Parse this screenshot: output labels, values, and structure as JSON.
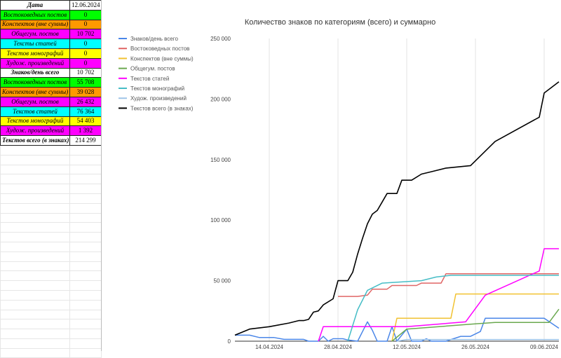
{
  "sheet": {
    "rows": [
      {
        "label": "Дата",
        "value": "12.06.2024",
        "bg": "#ffffff",
        "bold": true
      },
      {
        "label": "Востоковедных постов",
        "value": "0",
        "bg": "#00ff00",
        "bold": false
      },
      {
        "label": "Конспектов (вне суммы)",
        "value": "0",
        "bg": "#ff9900",
        "bold": false
      },
      {
        "label": "Общегум. постов",
        "value": "10 702",
        "bg": "#ff00ff",
        "bold": false
      },
      {
        "label": "Тексты статей",
        "value": "0",
        "bg": "#00ffff",
        "bold": false
      },
      {
        "label": "Текстов монографий",
        "value": "0",
        "bg": "#ffff00",
        "bold": false
      },
      {
        "label": "Худож. произведений",
        "value": "0",
        "bg": "#ff00ff",
        "bold": false
      },
      {
        "label": "Знаков/день всего",
        "value": "10 702",
        "bg": "#ffffff",
        "bold": true
      },
      {
        "label": "Востоковедных постов",
        "value": "55 708",
        "bg": "#00ff00",
        "bold": false
      },
      {
        "label": "Конспектов (вне суммы)",
        "value": "39 028",
        "bg": "#ff9900",
        "bold": false
      },
      {
        "label": "Общегум. постов",
        "value": "26 432",
        "bg": "#ff00ff",
        "bold": false
      },
      {
        "label": "Текстов статей",
        "value": "76 364",
        "bg": "#00ffff",
        "bold": false
      },
      {
        "label": "Текстов монографий",
        "value": "54 403",
        "bg": "#ffff00",
        "bold": false
      },
      {
        "label": "Худож. произведений",
        "value": "1 392",
        "bg": "#ff00ff",
        "bold": false
      },
      {
        "label": "Текстов всего (в знаках)",
        "value": "214 299",
        "bg": "#ffffff",
        "bold": true
      }
    ]
  },
  "chart_data": {
    "type": "line",
    "title": "Количество знаков по категориям (всего) и суммарно",
    "ylim": [
      0,
      250000
    ],
    "yticks": [
      0,
      50000,
      100000,
      150000,
      200000,
      250000
    ],
    "ytick_labels": [
      "0",
      "50 000",
      "100 000",
      "150 000",
      "200 000",
      "250 000"
    ],
    "xlim": [
      "2024-04-07",
      "2024-06-12"
    ],
    "xticks": [
      "2024-04-14",
      "2024-04-28",
      "2024-05-12",
      "2024-05-26",
      "2024-06-09"
    ],
    "xtick_labels": [
      "14.04.2024",
      "28.04.2024",
      "12.05.2024",
      "26.05.2024",
      "09.06.2024"
    ],
    "grid": "vertical",
    "legend_position": "left",
    "series": [
      {
        "name": "Знаков/день всего",
        "color": "#4a86e8",
        "points": [
          [
            "2024-04-07",
            5000
          ],
          [
            "2024-04-10",
            5000
          ],
          [
            "2024-04-12",
            3000
          ],
          [
            "2024-04-15",
            3000
          ],
          [
            "2024-04-17",
            1500
          ],
          [
            "2024-04-19",
            1500
          ],
          [
            "2024-04-21",
            1500
          ],
          [
            "2024-04-22",
            0
          ],
          [
            "2024-04-24",
            0
          ],
          [
            "2024-04-25",
            4000
          ],
          [
            "2024-04-26",
            0
          ],
          [
            "2024-04-27",
            2000
          ],
          [
            "2024-04-29",
            2000
          ],
          [
            "2024-04-30",
            1000
          ],
          [
            "2024-05-02",
            0
          ],
          [
            "2024-05-03",
            8000
          ],
          [
            "2024-05-04",
            16000
          ],
          [
            "2024-05-05",
            9000
          ],
          [
            "2024-05-06",
            0
          ],
          [
            "2024-05-08",
            0
          ],
          [
            "2024-05-09",
            12000
          ],
          [
            "2024-05-10",
            0
          ],
          [
            "2024-05-12",
            10000
          ],
          [
            "2024-05-13",
            0
          ],
          [
            "2024-05-15",
            0
          ],
          [
            "2024-05-16",
            2000
          ],
          [
            "2024-05-17",
            0
          ],
          [
            "2024-05-20",
            0
          ],
          [
            "2024-05-23",
            4000
          ],
          [
            "2024-05-25",
            4000
          ],
          [
            "2024-05-27",
            8000
          ],
          [
            "2024-05-28",
            19000
          ],
          [
            "2024-06-09",
            19000
          ],
          [
            "2024-06-12",
            10700
          ]
        ]
      },
      {
        "name": "Востоковедных постов",
        "color": "#e06666",
        "points": [
          [
            "2024-04-28",
            37000
          ],
          [
            "2024-05-02",
            37000
          ],
          [
            "2024-05-04",
            38000
          ],
          [
            "2024-05-05",
            43000
          ],
          [
            "2024-05-08",
            43000
          ],
          [
            "2024-05-09",
            46000
          ],
          [
            "2024-05-14",
            46000
          ],
          [
            "2024-05-15",
            48000
          ],
          [
            "2024-05-19",
            48000
          ],
          [
            "2024-05-20",
            55708
          ],
          [
            "2024-06-12",
            55708
          ]
        ]
      },
      {
        "name": "Конспектов (вне суммы)",
        "color": "#f1c232",
        "points": [
          [
            "2024-05-09",
            0
          ],
          [
            "2024-05-10",
            19000
          ],
          [
            "2024-05-21",
            19000
          ],
          [
            "2024-05-22",
            39028
          ],
          [
            "2024-06-12",
            39028
          ]
        ]
      },
      {
        "name": "Общегум. постов",
        "color": "#6aa84f",
        "points": [
          [
            "2024-05-09",
            0
          ],
          [
            "2024-05-12",
            10000
          ],
          [
            "2024-05-25",
            14000
          ],
          [
            "2024-05-30",
            15500
          ],
          [
            "2024-06-10",
            15500
          ],
          [
            "2024-06-12",
            26432
          ]
        ]
      },
      {
        "name": "Текстов статей",
        "color": "#ff00ff",
        "points": [
          [
            "2024-04-24",
            0
          ],
          [
            "2024-04-25",
            12000
          ],
          [
            "2024-05-12",
            12000
          ],
          [
            "2024-05-24",
            16000
          ],
          [
            "2024-05-28",
            38000
          ],
          [
            "2024-06-08",
            58000
          ],
          [
            "2024-06-09",
            76364
          ],
          [
            "2024-06-12",
            76364
          ]
        ]
      },
      {
        "name": "Текстов монографий",
        "color": "#46bdc6",
        "points": [
          [
            "2024-04-30",
            0
          ],
          [
            "2024-05-02",
            26000
          ],
          [
            "2024-05-04",
            42000
          ],
          [
            "2024-05-07",
            48000
          ],
          [
            "2024-05-15",
            50000
          ],
          [
            "2024-05-18",
            53000
          ],
          [
            "2024-05-21",
            54403
          ],
          [
            "2024-06-12",
            54403
          ]
        ]
      },
      {
        "name": "Худож. произведений",
        "color": "#9fc5e8",
        "points": [
          [
            "2024-05-10",
            0
          ],
          [
            "2024-05-12",
            1392
          ],
          [
            "2024-06-12",
            1392
          ]
        ]
      },
      {
        "name": "Текстов всего (в знаках)",
        "color": "#000000",
        "points": [
          [
            "2024-04-07",
            5000
          ],
          [
            "2024-04-10",
            10000
          ],
          [
            "2024-04-14",
            12000
          ],
          [
            "2024-04-18",
            15000
          ],
          [
            "2024-04-20",
            17000
          ],
          [
            "2024-04-21",
            17000
          ],
          [
            "2024-04-22",
            18000
          ],
          [
            "2024-04-23",
            24000
          ],
          [
            "2024-04-24",
            25000
          ],
          [
            "2024-04-25",
            30000
          ],
          [
            "2024-04-27",
            35000
          ],
          [
            "2024-04-28",
            50000
          ],
          [
            "2024-04-30",
            50000
          ],
          [
            "2024-05-01",
            57000
          ],
          [
            "2024-05-02",
            72000
          ],
          [
            "2024-05-03",
            85000
          ],
          [
            "2024-05-04",
            97000
          ],
          [
            "2024-05-05",
            105000
          ],
          [
            "2024-05-06",
            108000
          ],
          [
            "2024-05-07",
            115000
          ],
          [
            "2024-05-08",
            122000
          ],
          [
            "2024-05-10",
            122000
          ],
          [
            "2024-05-11",
            133000
          ],
          [
            "2024-05-13",
            133000
          ],
          [
            "2024-05-15",
            138000
          ],
          [
            "2024-05-17",
            140000
          ],
          [
            "2024-05-20",
            143000
          ],
          [
            "2024-05-25",
            145000
          ],
          [
            "2024-05-30",
            165000
          ],
          [
            "2024-06-08",
            185000
          ],
          [
            "2024-06-09",
            205000
          ],
          [
            "2024-06-12",
            214299
          ]
        ]
      }
    ]
  }
}
